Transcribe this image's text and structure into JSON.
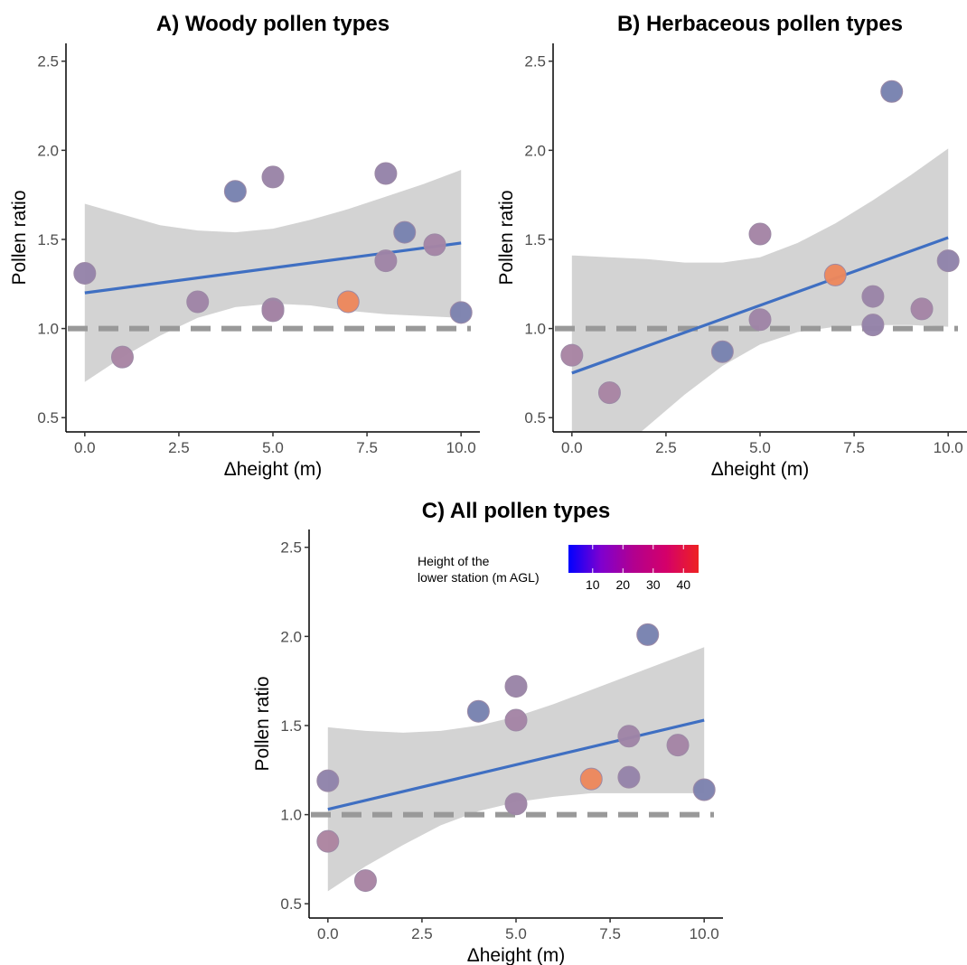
{
  "chart_data": [
    {
      "type": "scatter",
      "panel": "A",
      "title": "A) Woody pollen types",
      "xlabel": "Δheight (m)",
      "ylabel": "Pollen ratio",
      "xlim": [
        -0.5,
        10.5
      ],
      "ylim": [
        0.42,
        2.6
      ],
      "xticks": [
        0,
        2.5,
        5,
        7.5,
        10
      ],
      "xtick_labels": [
        "0.0",
        "2.5",
        "5.0",
        "7.5",
        "10.0"
      ],
      "yticks": [
        0.5,
        1,
        1.5,
        2,
        2.5
      ],
      "ytick_labels": [
        "0.5",
        "1.0",
        "1.5",
        "2.0",
        "2.5"
      ],
      "grid": false,
      "reference_line": {
        "y": 1.0,
        "style": "dashed",
        "color": "#999999"
      },
      "points": [
        {
          "x": 0,
          "y": 1.31,
          "height": 20
        },
        {
          "x": 1,
          "y": 0.84,
          "height": 28
        },
        {
          "x": 3,
          "y": 1.15,
          "height": 24
        },
        {
          "x": 4,
          "y": 1.77,
          "height": 8
        },
        {
          "x": 5,
          "y": 1.85,
          "height": 22
        },
        {
          "x": 5,
          "y": 1.11,
          "height": 24
        },
        {
          "x": 5,
          "y": 1.1,
          "height": 26
        },
        {
          "x": 7,
          "y": 1.15,
          "height": 45
        },
        {
          "x": 8,
          "y": 1.87,
          "height": 20
        },
        {
          "x": 8,
          "y": 1.38,
          "height": 24
        },
        {
          "x": 8.5,
          "y": 1.54,
          "height": 8
        },
        {
          "x": 9.3,
          "y": 1.47,
          "height": 26
        },
        {
          "x": 10,
          "y": 1.09,
          "height": 10
        }
      ],
      "fit": {
        "x": [
          0,
          10
        ],
        "y": [
          1.2,
          1.48
        ]
      },
      "ci_band": {
        "x": [
          0,
          1,
          2,
          3,
          4,
          5,
          6,
          7,
          8,
          9,
          10
        ],
        "lower": [
          0.7,
          0.84,
          0.96,
          1.06,
          1.12,
          1.14,
          1.13,
          1.1,
          1.08,
          1.07,
          1.06
        ],
        "upper": [
          1.7,
          1.64,
          1.58,
          1.55,
          1.54,
          1.56,
          1.61,
          1.67,
          1.74,
          1.81,
          1.89
        ]
      }
    },
    {
      "type": "scatter",
      "panel": "B",
      "title": "B) Herbaceous pollen types",
      "xlabel": "Δheight (m)",
      "ylabel": "Pollen ratio",
      "xlim": [
        -0.5,
        10.5
      ],
      "ylim": [
        0.42,
        2.6
      ],
      "xticks": [
        0,
        2.5,
        5,
        7.5,
        10
      ],
      "xtick_labels": [
        "0.0",
        "2.5",
        "5.0",
        "7.5",
        "10.0"
      ],
      "yticks": [
        0.5,
        1,
        1.5,
        2,
        2.5
      ],
      "ytick_labels": [
        "0.5",
        "1.0",
        "1.5",
        "2.0",
        "2.5"
      ],
      "grid": false,
      "reference_line": {
        "y": 1.0,
        "style": "dashed",
        "color": "#999999"
      },
      "points": [
        {
          "x": 0,
          "y": 0.85,
          "height": 28
        },
        {
          "x": 1,
          "y": 0.64,
          "height": 28
        },
        {
          "x": 4,
          "y": 0.87,
          "height": 8
        },
        {
          "x": 5,
          "y": 1.53,
          "height": 26
        },
        {
          "x": 5,
          "y": 1.05,
          "height": 24
        },
        {
          "x": 7,
          "y": 1.3,
          "height": 45
        },
        {
          "x": 8,
          "y": 1.18,
          "height": 22
        },
        {
          "x": 8,
          "y": 1.02,
          "height": 20
        },
        {
          "x": 8.5,
          "y": 2.33,
          "height": 8
        },
        {
          "x": 9.3,
          "y": 1.11,
          "height": 26
        },
        {
          "x": 10,
          "y": 1.38,
          "height": 18
        }
      ],
      "fit": {
        "x": [
          0,
          10
        ],
        "y": [
          0.75,
          1.51
        ]
      },
      "ci_band": {
        "x": [
          0,
          1,
          2,
          3,
          4,
          5,
          6,
          7,
          8,
          9,
          10
        ],
        "lower": [
          0.08,
          0.27,
          0.45,
          0.63,
          0.79,
          0.91,
          0.98,
          1.01,
          1.02,
          1.02,
          1.01
        ],
        "upper": [
          1.41,
          1.4,
          1.39,
          1.37,
          1.37,
          1.4,
          1.48,
          1.59,
          1.72,
          1.86,
          2.01
        ]
      }
    },
    {
      "type": "scatter",
      "panel": "C",
      "title": "C) All pollen types",
      "xlabel": "Δheight (m)",
      "ylabel": "Pollen ratio",
      "xlim": [
        -0.5,
        10.5
      ],
      "ylim": [
        0.42,
        2.6
      ],
      "xticks": [
        0,
        2.5,
        5,
        7.5,
        10
      ],
      "xtick_labels": [
        "0.0",
        "2.5",
        "5.0",
        "7.5",
        "10.0"
      ],
      "yticks": [
        0.5,
        1,
        1.5,
        2,
        2.5
      ],
      "ytick_labels": [
        "0.5",
        "1.0",
        "1.5",
        "2.0",
        "2.5"
      ],
      "grid": false,
      "reference_line": {
        "y": 1.0,
        "style": "dashed",
        "color": "#999999"
      },
      "points": [
        {
          "x": 0,
          "y": 1.19,
          "height": 18
        },
        {
          "x": 0,
          "y": 0.85,
          "height": 30
        },
        {
          "x": 1,
          "y": 0.63,
          "height": 28
        },
        {
          "x": 4,
          "y": 1.58,
          "height": 8
        },
        {
          "x": 5,
          "y": 1.72,
          "height": 22
        },
        {
          "x": 5,
          "y": 1.53,
          "height": 26
        },
        {
          "x": 5,
          "y": 1.06,
          "height": 24
        },
        {
          "x": 7,
          "y": 1.2,
          "height": 45
        },
        {
          "x": 8,
          "y": 1.44,
          "height": 24
        },
        {
          "x": 8,
          "y": 1.21,
          "height": 20
        },
        {
          "x": 8.5,
          "y": 2.01,
          "height": 8
        },
        {
          "x": 9.3,
          "y": 1.39,
          "height": 26
        },
        {
          "x": 10,
          "y": 1.14,
          "height": 10
        }
      ],
      "fit": {
        "x": [
          0,
          10
        ],
        "y": [
          1.03,
          1.53
        ]
      },
      "ci_band": {
        "x": [
          0,
          1,
          2,
          3,
          4,
          5,
          6,
          7,
          8,
          9,
          10
        ],
        "lower": [
          0.57,
          0.71,
          0.83,
          0.94,
          1.02,
          1.07,
          1.1,
          1.12,
          1.12,
          1.12,
          1.12
        ],
        "upper": [
          1.49,
          1.47,
          1.46,
          1.47,
          1.5,
          1.55,
          1.62,
          1.7,
          1.78,
          1.86,
          1.94
        ]
      }
    }
  ],
  "legend": {
    "title_lines": [
      "Height of the",
      "lower station (m AGL)"
    ],
    "placement": "top-center of panel C",
    "range": [
      2,
      45
    ],
    "ticks": [
      10,
      20,
      30,
      40
    ],
    "tick_labels": [
      "10",
      "20",
      "30",
      "40"
    ],
    "gradient_colors": [
      "#0000ff",
      "#7f00cf",
      "#b2008f",
      "#d4006a",
      "#ee2222"
    ]
  },
  "colors": {
    "fit_line": "#3f6fc2",
    "ci_band": "#d3d3d3",
    "reference_line": "#999999",
    "axis": "#000000",
    "tick_label": "#4d4d4d"
  }
}
